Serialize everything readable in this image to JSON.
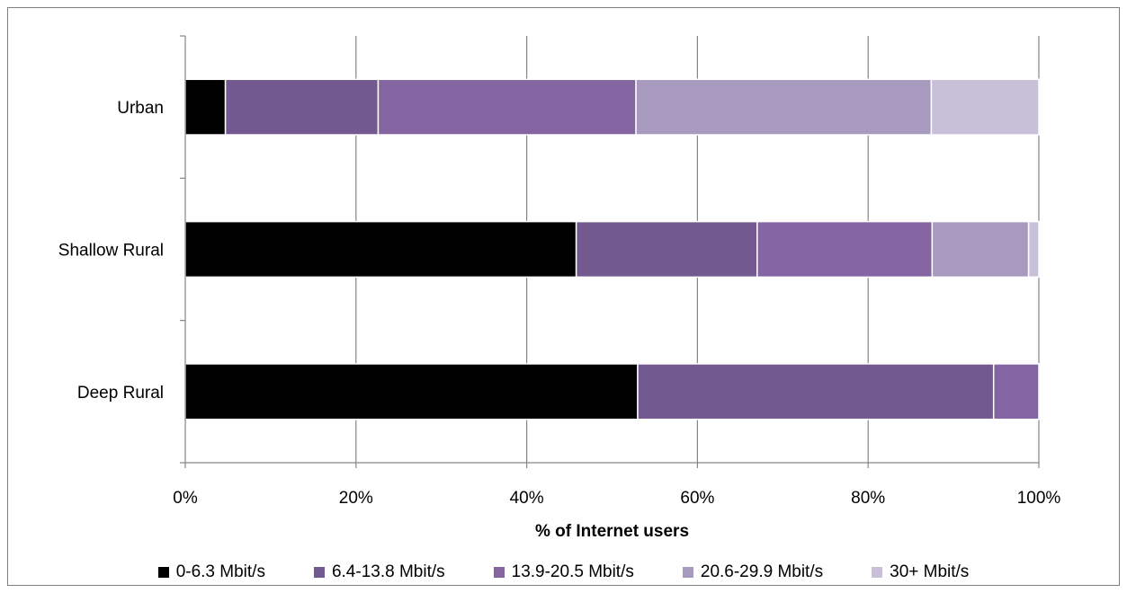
{
  "chart_data": {
    "type": "bar",
    "orientation": "horizontal",
    "stacked": true,
    "normalized_percent": true,
    "categories": [
      "Urban",
      "Shallow Rural",
      "Deep Rural"
    ],
    "series": [
      {
        "name": "0-6.3 Mbit/s",
        "color": "#000000",
        "values": [
          4.7,
          45.8,
          53.0
        ]
      },
      {
        "name": "6.4-13.8 Mbit/s",
        "color": "#725a90",
        "values": [
          17.9,
          21.2,
          41.7
        ]
      },
      {
        "name": "13.9-20.5 Mbit/s",
        "color": "#8465a2",
        "values": [
          30.2,
          20.5,
          5.3
        ]
      },
      {
        "name": "20.6-29.9 Mbit/s",
        "color": "#a899bf",
        "values": [
          34.6,
          11.3,
          0
        ]
      },
      {
        "name": "30+ Mbit/s",
        "color": "#c8c0d8",
        "values": [
          12.6,
          1.2,
          0
        ]
      }
    ],
    "xlabel": "% of Internet users",
    "ylabel": "",
    "xlim": [
      0,
      100
    ],
    "x_ticks": [
      "0%",
      "20%",
      "40%",
      "60%",
      "80%",
      "100%"
    ],
    "grid": "vertical",
    "legend_position": "bottom"
  }
}
